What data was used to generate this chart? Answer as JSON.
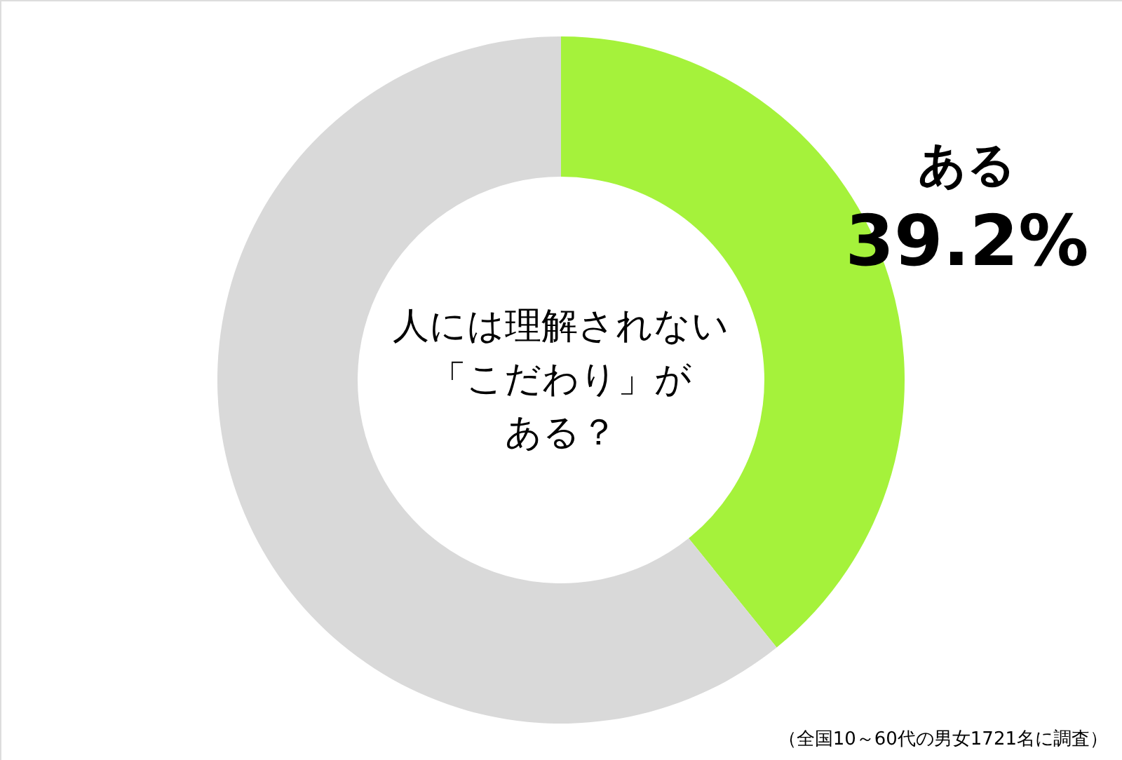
{
  "chart_data": {
    "type": "donut",
    "title": "人には理解されない「こだわり」がある？",
    "categories": [
      "ある",
      null
    ],
    "values": [
      39.2,
      60.8
    ],
    "colors": [
      "#a5f23b",
      "#d9d9d9"
    ],
    "value_labels": [
      "39.2%",
      null
    ],
    "annotations": [
      "（全国10～60代の男女1721名に調査）"
    ]
  }
}
